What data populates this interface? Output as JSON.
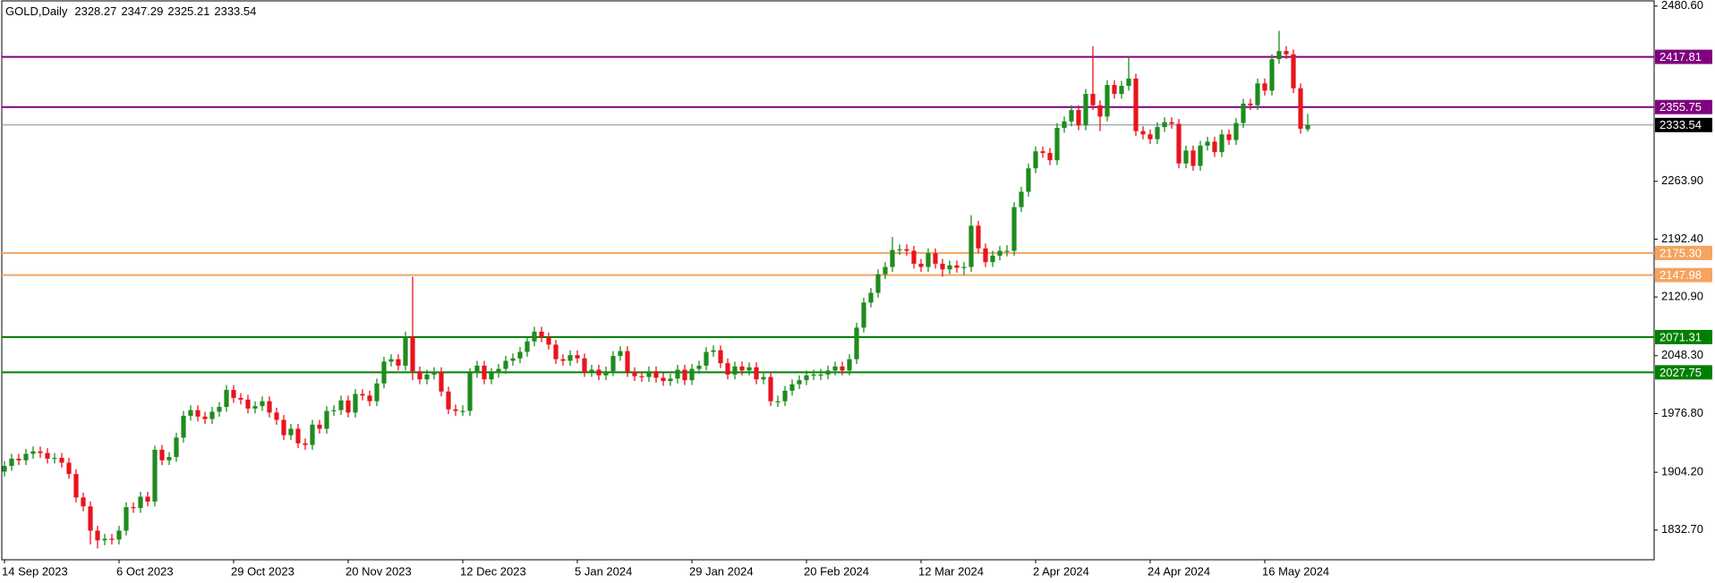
{
  "chart_data": {
    "type": "candlestick",
    "title": "GOLD,Daily",
    "categories": [
      "14 Sep 2023",
      null,
      null,
      null,
      null,
      null,
      null,
      null,
      null,
      null,
      null,
      null,
      null,
      null,
      null,
      null,
      "6 Oct 2023",
      null,
      null,
      null,
      null,
      null,
      null,
      null,
      null,
      null,
      null,
      null,
      null,
      null,
      null,
      null,
      "29 Oct 2023",
      null,
      null,
      null,
      null,
      null,
      null,
      null,
      null,
      null,
      null,
      null,
      null,
      null,
      null,
      null,
      "20 Nov 2023",
      null,
      null,
      null,
      null,
      null,
      null,
      null,
      null,
      null,
      null,
      null,
      null,
      null,
      null,
      null,
      "12 Dec 2023",
      null,
      null,
      null,
      null,
      null,
      null,
      null,
      null,
      null,
      null,
      null,
      null,
      null,
      null,
      null,
      "5 Jan 2024",
      null,
      null,
      null,
      null,
      null,
      null,
      null,
      null,
      null,
      null,
      null,
      null,
      null,
      null,
      null,
      "29 Jan 2024",
      null,
      null,
      null,
      null,
      null,
      null,
      null,
      null,
      null,
      null,
      null,
      null,
      null,
      null,
      null,
      "20 Feb 2024",
      null,
      null,
      null,
      null,
      null,
      null,
      null,
      null,
      null,
      null,
      null,
      null,
      null,
      null,
      null,
      "12 Mar 2024",
      null,
      null,
      null,
      null,
      null,
      null,
      null,
      null,
      null,
      null,
      null,
      null,
      null,
      null,
      null,
      "2 Apr 2024",
      null,
      null,
      null,
      null,
      null,
      null,
      null,
      null,
      null,
      null,
      null,
      null,
      null,
      null,
      null,
      "24 Apr 2024",
      null,
      null,
      null,
      null,
      null,
      null,
      null,
      null,
      null,
      null,
      null,
      null,
      null,
      null,
      null,
      "16 May 2024",
      null,
      null,
      null,
      null,
      null,
      null
    ],
    "open": [
      1905,
      1912,
      1921,
      1919,
      1927,
      1930,
      1928,
      1921,
      1922,
      1916,
      1902,
      1873,
      1862,
      1832,
      1820,
      1822,
      1821,
      1832,
      1861,
      1860,
      1874,
      1868,
      1932,
      1919,
      1923,
      1947,
      1974,
      1981,
      1973,
      1970,
      1979,
      1985,
      2006,
      1996,
      1994,
      1983,
      1986,
      1992,
      1978,
      1969,
      1950,
      1958,
      1940,
      1938,
      1963,
      1958,
      1980,
      1981,
      1993,
      1978,
      2001,
      1999,
      1992,
      2014,
      2041,
      2044,
      2036,
      2072,
      2029,
      2019,
      2025,
      2028,
      2004,
      1982,
      1980,
      1980,
      2027,
      2036,
      2019,
      2027,
      2032,
      2042,
      2045,
      2053,
      2066,
      2078,
      2071,
      2062,
      2044,
      2042,
      2049,
      2045,
      2028,
      2031,
      2024,
      2029,
      2048,
      2054,
      2028,
      2023,
      2022,
      2029,
      2021,
      2017,
      2020,
      2031,
      2018,
      2032,
      2036,
      2053,
      2055,
      2039,
      2025,
      2035,
      2030,
      2034,
      2019,
      2022,
      1992,
      1992,
      2005,
      2013,
      2018,
      2024,
      2025,
      2025,
      2030,
      2035,
      2030,
      2044,
      2083,
      2114,
      2126,
      2149,
      2158,
      2179,
      2180,
      2178,
      2162,
      2158,
      2175,
      2162,
      2155,
      2160,
      2157,
      2158,
      2209,
      2181,
      2164,
      2172,
      2178,
      2178,
      2232,
      2251,
      2280,
      2301,
      2299,
      2290,
      2330,
      2338,
      2352,
      2333,
      2372,
      2358,
      2344,
      2383,
      2372,
      2382,
      2391,
      2326,
      2322,
      2316,
      2331,
      2337,
      2335,
      2286,
      2302,
      2283,
      2308,
      2313,
      2300,
      2322,
      2315,
      2336,
      2360,
      2358,
      2385,
      2376,
      2415,
      2425,
      2421,
      2379,
      2328.27
    ],
    "high": [
      1918,
      1927,
      1927,
      1933,
      1936,
      1936,
      1934,
      1928,
      1928,
      1922,
      1908,
      1879,
      1868,
      1838,
      1828,
      1828,
      1838,
      1867,
      1867,
      1880,
      1880,
      1937,
      1938,
      1929,
      1953,
      1980,
      1987,
      1987,
      1979,
      1985,
      1991,
      2012,
      2012,
      2002,
      2000,
      1992,
      1998,
      1998,
      1984,
      1975,
      1964,
      1964,
      1946,
      1969,
      1969,
      1986,
      1987,
      1999,
      1999,
      2007,
      2007,
      2005,
      2020,
      2047,
      2050,
      2050,
      2078,
      2146,
      2035,
      2031,
      2034,
      2034,
      2010,
      1988,
      1987,
      2033,
      2042,
      2042,
      2033,
      2038,
      2048,
      2051,
      2059,
      2072,
      2084,
      2084,
      2077,
      2068,
      2050,
      2055,
      2055,
      2051,
      2037,
      2037,
      2035,
      2054,
      2060,
      2060,
      2034,
      2029,
      2035,
      2035,
      2027,
      2026,
      2037,
      2037,
      2038,
      2042,
      2059,
      2061,
      2061,
      2045,
      2041,
      2041,
      2040,
      2040,
      2028,
      2028,
      1999,
      2011,
      2019,
      2024,
      2030,
      2031,
      2032,
      2036,
      2041,
      2041,
      2050,
      2089,
      2120,
      2132,
      2155,
      2164,
      2195,
      2186,
      2186,
      2184,
      2168,
      2181,
      2181,
      2168,
      2166,
      2166,
      2164,
      2222,
      2215,
      2187,
      2178,
      2184,
      2185,
      2238,
      2257,
      2286,
      2307,
      2307,
      2305,
      2336,
      2344,
      2358,
      2358,
      2378,
      2431,
      2364,
      2389,
      2389,
      2388,
      2418,
      2397,
      2332,
      2328,
      2337,
      2343,
      2343,
      2341,
      2308,
      2308,
      2314,
      2319,
      2319,
      2328,
      2328,
      2342,
      2366,
      2366,
      2391,
      2391,
      2421,
      2450,
      2431,
      2427,
      2385,
      2347.29
    ],
    "low": [
      1899,
      1906,
      1913,
      1913,
      1921,
      1922,
      1915,
      1915,
      1910,
      1896,
      1867,
      1856,
      1815,
      1810,
      1814,
      1815,
      1815,
      1826,
      1854,
      1854,
      1862,
      1862,
      1913,
      1913,
      1917,
      1941,
      1968,
      1967,
      1964,
      1964,
      1973,
      1979,
      1990,
      1988,
      1977,
      1977,
      1980,
      1972,
      1963,
      1944,
      1944,
      1934,
      1932,
      1932,
      1952,
      1952,
      1974,
      1975,
      1972,
      1972,
      1993,
      1986,
      1986,
      2008,
      2035,
      2030,
      2030,
      2018,
      2013,
      2013,
      2019,
      1998,
      1976,
      1974,
      1974,
      1974,
      2021,
      2013,
      2013,
      2021,
      2026,
      2036,
      2039,
      2047,
      2060,
      2065,
      2056,
      2038,
      2036,
      2036,
      2039,
      2022,
      2022,
      2018,
      2018,
      2023,
      2042,
      2022,
      2017,
      2016,
      2016,
      2015,
      2011,
      2011,
      2014,
      2012,
      2012,
      2026,
      2030,
      2047,
      2033,
      2019,
      2019,
      2024,
      2024,
      2013,
      2013,
      1986,
      1985,
      1986,
      1999,
      2007,
      2012,
      2018,
      2018,
      2019,
      2024,
      2024,
      2024,
      2038,
      2077,
      2108,
      2120,
      2143,
      2152,
      2173,
      2172,
      2156,
      2152,
      2152,
      2156,
      2146,
      2149,
      2151,
      2148,
      2152,
      2175,
      2158,
      2158,
      2166,
      2171,
      2172,
      2226,
      2245,
      2274,
      2293,
      2284,
      2284,
      2324,
      2332,
      2327,
      2327,
      2352,
      2326,
      2338,
      2366,
      2366,
      2376,
      2320,
      2316,
      2310,
      2310,
      2325,
      2329,
      2280,
      2280,
      2277,
      2277,
      2302,
      2294,
      2294,
      2309,
      2309,
      2330,
      2352,
      2352,
      2370,
      2370,
      2409,
      2415,
      2373,
      2323,
      2325.21
    ],
    "close": [
      1912,
      1921,
      1919,
      1927,
      1930,
      1928,
      1921,
      1922,
      1916,
      1902,
      1873,
      1862,
      1832,
      1820,
      1822,
      1821,
      1832,
      1861,
      1860,
      1874,
      1868,
      1932,
      1919,
      1923,
      1947,
      1974,
      1981,
      1973,
      1970,
      1979,
      1985,
      2006,
      1996,
      1994,
      1983,
      1986,
      1992,
      1978,
      1969,
      1950,
      1958,
      1940,
      1938,
      1963,
      1958,
      1980,
      1981,
      1993,
      1978,
      2001,
      1999,
      1992,
      2014,
      2041,
      2044,
      2036,
      2072,
      2029,
      2019,
      2025,
      2028,
      2004,
      1982,
      1980,
      1980,
      2027,
      2036,
      2019,
      2027,
      2032,
      2042,
      2045,
      2053,
      2066,
      2078,
      2071,
      2062,
      2044,
      2042,
      2049,
      2045,
      2028,
      2031,
      2024,
      2029,
      2048,
      2054,
      2028,
      2023,
      2022,
      2029,
      2021,
      2017,
      2020,
      2031,
      2018,
      2032,
      2036,
      2053,
      2055,
      2039,
      2025,
      2035,
      2030,
      2034,
      2019,
      2022,
      1992,
      1992,
      2005,
      2013,
      2018,
      2024,
      2025,
      2025,
      2030,
      2035,
      2030,
      2044,
      2083,
      2114,
      2126,
      2149,
      2158,
      2179,
      2180,
      2178,
      2162,
      2158,
      2175,
      2162,
      2155,
      2160,
      2157,
      2158,
      2209,
      2181,
      2164,
      2172,
      2178,
      2178,
      2232,
      2251,
      2280,
      2301,
      2299,
      2290,
      2330,
      2338,
      2352,
      2333,
      2372,
      2358,
      2344,
      2383,
      2372,
      2382,
      2391,
      2326,
      2322,
      2316,
      2331,
      2337,
      2335,
      2286,
      2302,
      2283,
      2308,
      2313,
      2300,
      2322,
      2315,
      2336,
      2360,
      2358,
      2385,
      2376,
      2415,
      2425,
      2421,
      2379,
      2329,
      2333.54
    ],
    "up_color": "#1e8c1e",
    "down_color": "#e8141e",
    "current_color": "#7a8c9c",
    "levels": [
      {
        "value": 2417.81,
        "color": "#800080"
      },
      {
        "value": 2355.75,
        "color": "#800080"
      },
      {
        "value": 2175.3,
        "label": "2175.30",
        "color": "#f4a460"
      },
      {
        "value": 2147.98,
        "color": "#f4a460"
      },
      {
        "value": 2071.31,
        "color": "#008000"
      },
      {
        "value": 2027.75,
        "color": "#008000"
      }
    ],
    "ylim": [
      1796,
      2487
    ],
    "yticks": [
      {
        "value": 2480.6,
        "label": "2480.60"
      },
      {
        "value": 2263.9,
        "label": "2263.90"
      },
      {
        "value": 2192.4,
        "label": "2192.40"
      },
      {
        "value": 2120.9,
        "label": "2120.90"
      },
      {
        "value": 2048.3,
        "label": "2048.30"
      },
      {
        "value": 1976.8,
        "label": "1976.80"
      },
      {
        "value": 1904.2,
        "label": "1904.20"
      },
      {
        "value": 1832.7,
        "label": "1832.70"
      }
    ]
  }
}
